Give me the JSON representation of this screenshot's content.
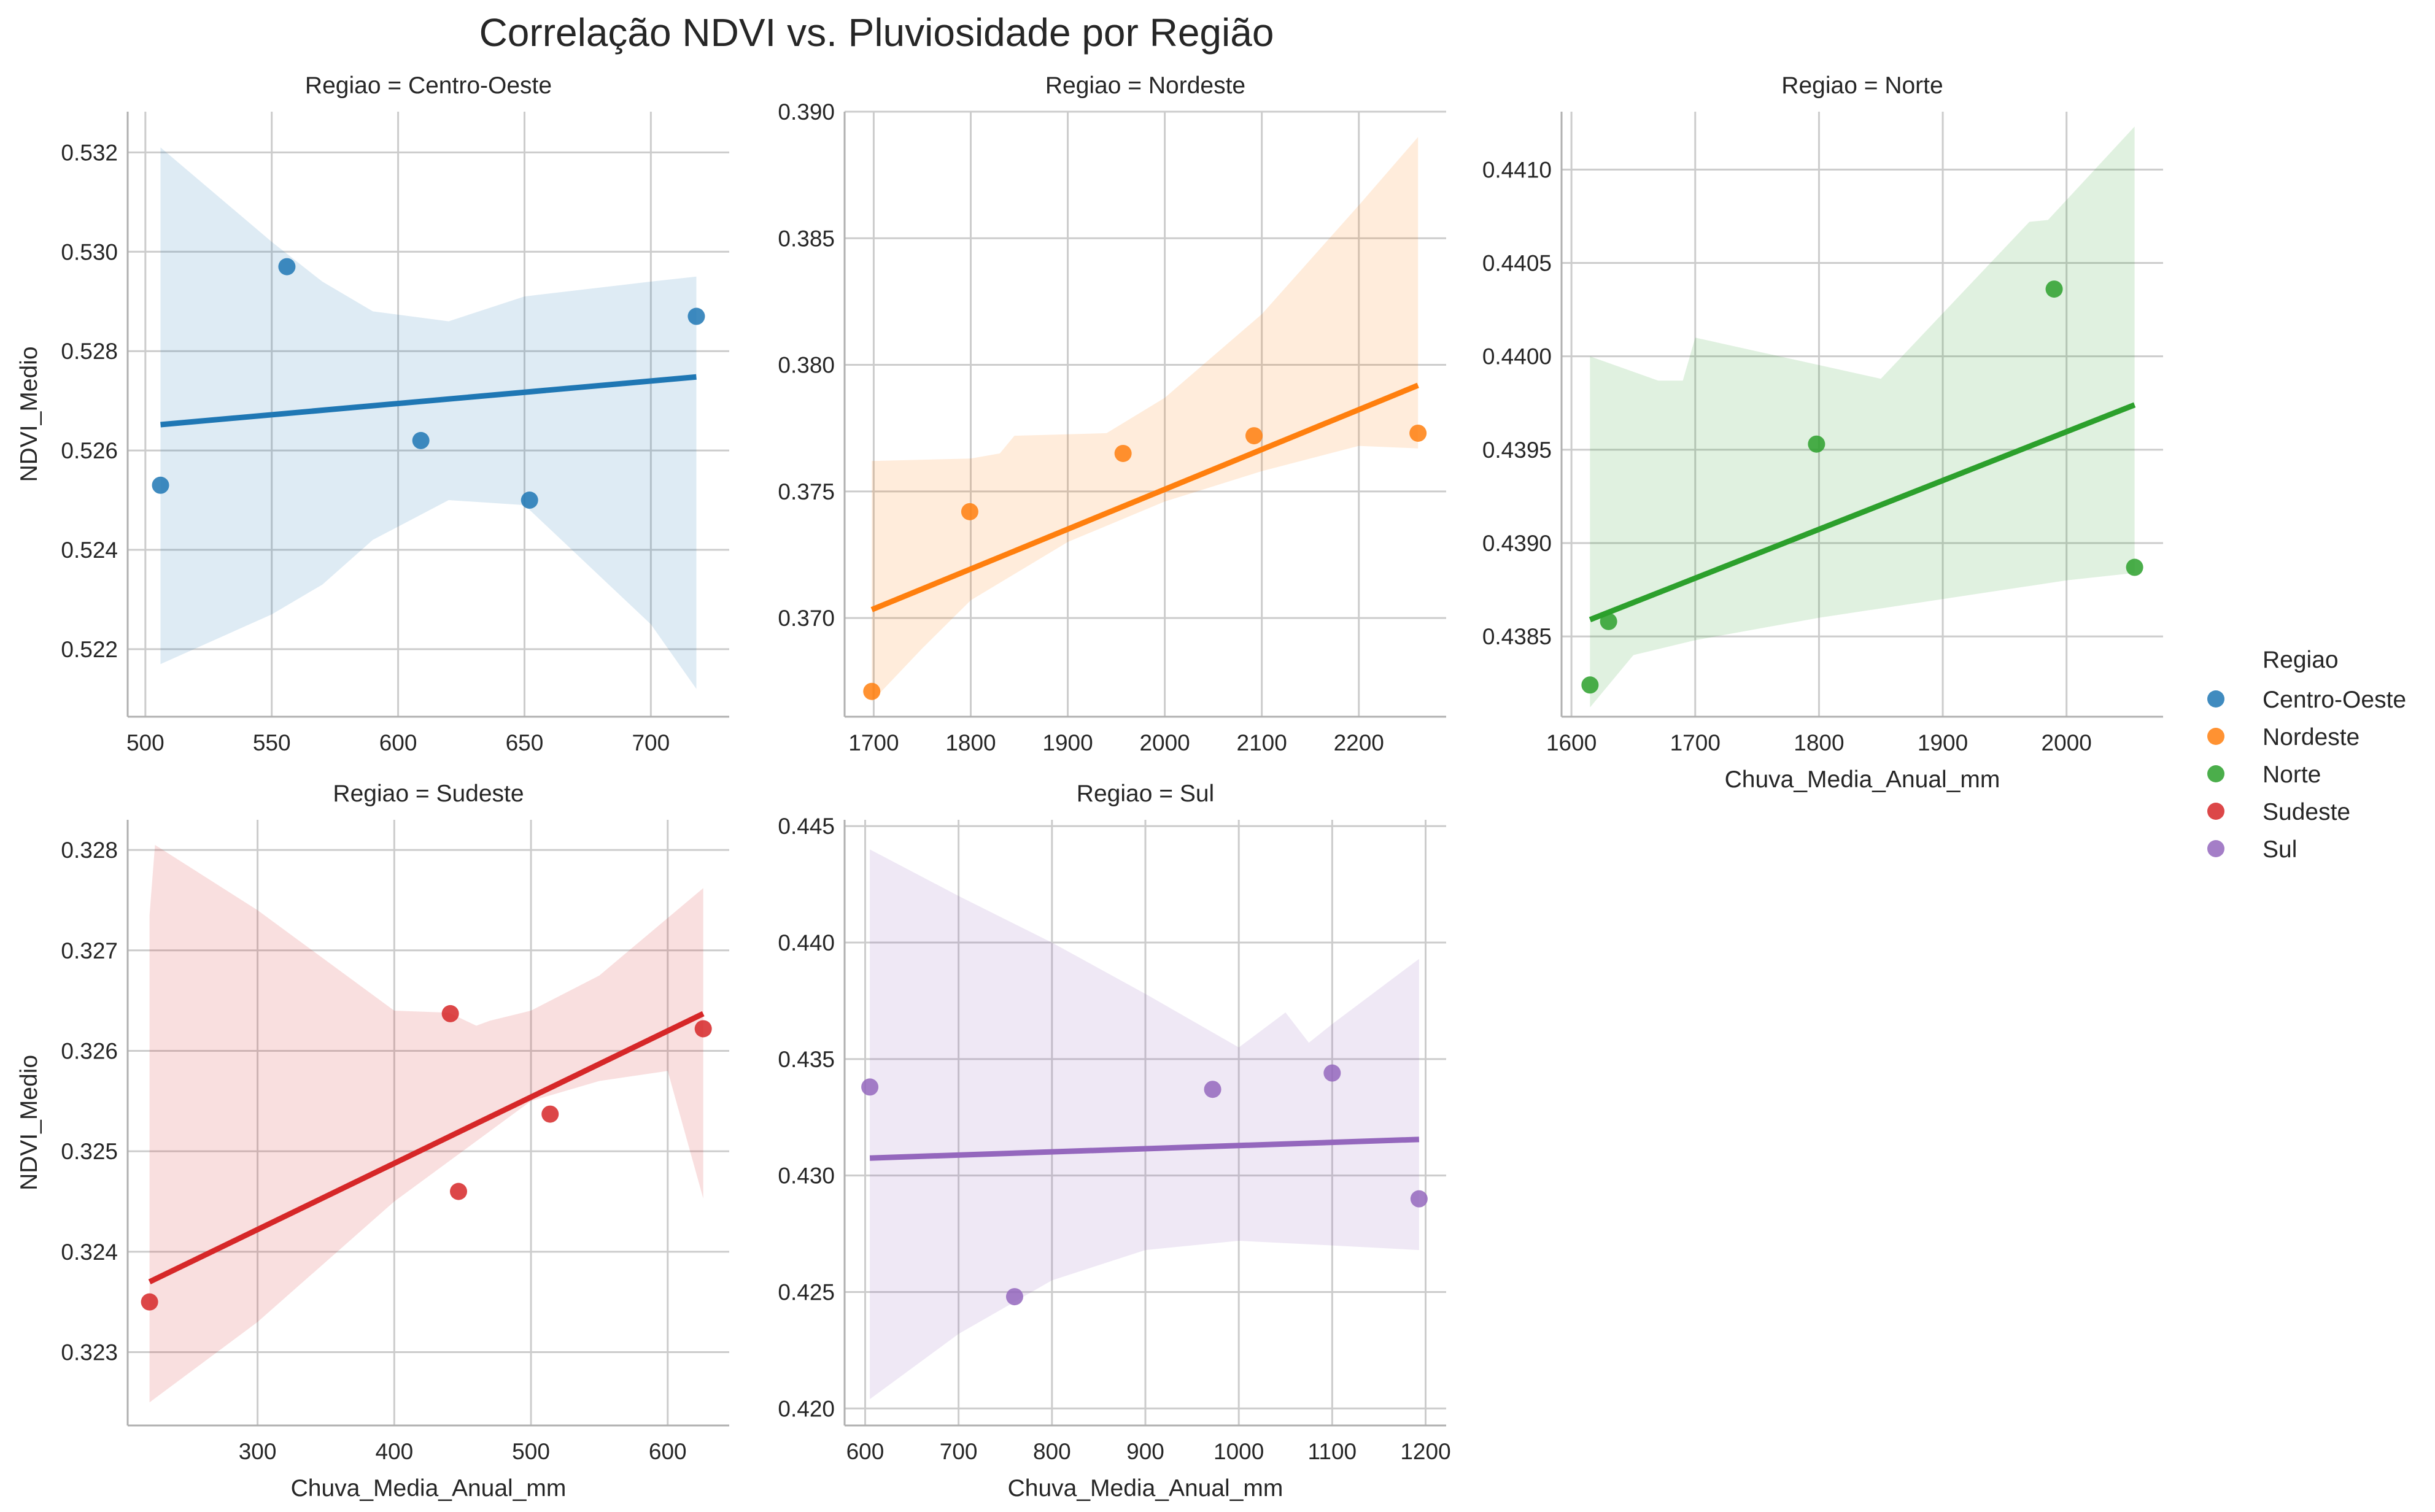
{
  "chart_data": {
    "type": "scatter",
    "title": "Correlação NDVI vs. Pluviosidade por Região",
    "legend": {
      "title": "Regiao",
      "placement": "right",
      "entries": [
        {
          "label": "Centro-Oeste",
          "color": "#1f77b4"
        },
        {
          "label": "Nordeste",
          "color": "#ff7f0e"
        },
        {
          "label": "Norte",
          "color": "#2ca02c"
        },
        {
          "label": "Sudeste",
          "color": "#d62728"
        },
        {
          "label": "Sul",
          "color": "#9467bd"
        }
      ]
    },
    "grid": true,
    "panels": [
      {
        "title": "Regiao = Centro-Oeste",
        "color": "#1f77b4",
        "ylabel": "NDVI_Medio",
        "xlabel": "",
        "xlim": [
          493,
          731
        ],
        "ylim": [
          0.52064,
          0.53282
        ],
        "xticks": [
          500,
          550,
          600,
          650,
          700
        ],
        "yticks": [
          0.522,
          0.524,
          0.526,
          0.528,
          0.53,
          0.532
        ],
        "xtick_labels": [
          "500",
          "550",
          "600",
          "650",
          "700"
        ],
        "ytick_labels": [
          "0.522",
          "0.524",
          "0.526",
          "0.528",
          "0.530",
          "0.532"
        ],
        "points": [
          [
            506,
            0.5253
          ],
          [
            556,
            0.5297
          ],
          [
            609,
            0.5262
          ],
          [
            652,
            0.525
          ],
          [
            718,
            0.5287
          ]
        ],
        "fit": [
          [
            506,
            0.52652
          ],
          [
            718,
            0.52748
          ]
        ],
        "ci_upper": [
          [
            506,
            0.5321
          ],
          [
            550,
            0.5302
          ],
          [
            570,
            0.5294
          ],
          [
            590,
            0.5288
          ],
          [
            620,
            0.5286
          ],
          [
            650,
            0.5291
          ],
          [
            700,
            0.5294
          ],
          [
            718,
            0.5295
          ]
        ],
        "ci_lower": [
          [
            506,
            0.5217
          ],
          [
            550,
            0.5227
          ],
          [
            570,
            0.5233
          ],
          [
            590,
            0.5242
          ],
          [
            620,
            0.525
          ],
          [
            650,
            0.5249
          ],
          [
            700,
            0.5225
          ],
          [
            718,
            0.5212
          ]
        ]
      },
      {
        "title": "Regiao = Nordeste",
        "color": "#ff7f0e",
        "ylabel": "",
        "xlabel": "",
        "xlim": [
          1670,
          2290
        ],
        "ylim": [
          0.3661,
          0.39
        ],
        "xticks": [
          1700,
          1800,
          1900,
          2000,
          2100,
          2200
        ],
        "yticks": [
          0.37,
          0.375,
          0.38,
          0.385,
          0.39
        ],
        "xtick_labels": [
          "1700",
          "1800",
          "1900",
          "2000",
          "2100",
          "2200"
        ],
        "ytick_labels": [
          "0.370",
          "0.375",
          "0.380",
          "0.385",
          "0.390"
        ],
        "points": [
          [
            1698,
            0.3671
          ],
          [
            1799,
            0.3742
          ],
          [
            1957,
            0.3765
          ],
          [
            2092,
            0.3772
          ],
          [
            2261,
            0.3773
          ]
        ],
        "fit": [
          [
            1698,
            0.37033
          ],
          [
            2261,
            0.37919
          ]
        ],
        "ci_upper": [
          [
            1698,
            0.3762
          ],
          [
            1800,
            0.3763
          ],
          [
            1830,
            0.3765
          ],
          [
            1845,
            0.3772
          ],
          [
            1940,
            0.3773
          ],
          [
            2000,
            0.3787
          ],
          [
            2100,
            0.382
          ],
          [
            2200,
            0.3863
          ],
          [
            2261,
            0.389
          ]
        ],
        "ci_lower": [
          [
            1698,
            0.3667
          ],
          [
            1750,
            0.3688
          ],
          [
            1800,
            0.3707
          ],
          [
            1900,
            0.373
          ],
          [
            2000,
            0.3746
          ],
          [
            2100,
            0.3758
          ],
          [
            2200,
            0.3768
          ],
          [
            2261,
            0.3767
          ]
        ]
      },
      {
        "title": "Regiao = Norte",
        "color": "#2ca02c",
        "ylabel": "",
        "xlabel": "Chuva_Media_Anual_mm",
        "xlim": [
          1592,
          2078
        ],
        "ylim": [
          0.43807,
          0.44131
        ],
        "xticks": [
          1600,
          1700,
          1800,
          1900,
          2000
        ],
        "yticks": [
          0.4385,
          0.439,
          0.4395,
          0.44,
          0.4405,
          0.441
        ],
        "xtick_labels": [
          "1600",
          "1700",
          "1800",
          "1900",
          "2000"
        ],
        "ytick_labels": [
          "0.4385",
          "0.4390",
          "0.4395",
          "0.4400",
          "0.4405",
          "0.4410"
        ],
        "points": [
          [
            1615,
            0.43824
          ],
          [
            1630,
            0.43858
          ],
          [
            1798,
            0.43953
          ],
          [
            1990,
            0.44036
          ],
          [
            2055,
            0.43887
          ]
        ],
        "fit": [
          [
            1615,
            0.43859
          ],
          [
            2055,
            0.43974
          ]
        ],
        "ci_upper": [
          [
            1615,
            0.44
          ],
          [
            1670,
            0.43987
          ],
          [
            1690,
            0.43987
          ],
          [
            1700,
            0.4401
          ],
          [
            1850,
            0.43988
          ],
          [
            1970,
            0.44072
          ],
          [
            1985,
            0.44073
          ],
          [
            2055,
            0.44123
          ]
        ],
        "ci_lower": [
          [
            1615,
            0.43812
          ],
          [
            1650,
            0.4384
          ],
          [
            1700,
            0.43848
          ],
          [
            1800,
            0.4386
          ],
          [
            1900,
            0.4387
          ],
          [
            2000,
            0.4388
          ],
          [
            2055,
            0.43884
          ]
        ]
      },
      {
        "title": "Regiao = Sudeste",
        "color": "#d62728",
        "ylabel": "NDVI_Medio",
        "xlabel": "Chuva_Media_Anual_mm",
        "xlim": [
          205,
          645
        ],
        "ylim": [
          0.32227,
          0.3283
        ],
        "xticks": [
          300,
          400,
          500,
          600
        ],
        "yticks": [
          0.323,
          0.324,
          0.325,
          0.326,
          0.327,
          0.328
        ],
        "xtick_labels": [
          "300",
          "400",
          "500",
          "600"
        ],
        "ytick_labels": [
          "0.323",
          "0.324",
          "0.325",
          "0.326",
          "0.327",
          "0.328"
        ],
        "points": [
          [
            221,
            0.3235
          ],
          [
            441,
            0.32637
          ],
          [
            447,
            0.3246
          ],
          [
            514,
            0.32537
          ],
          [
            626,
            0.32622
          ]
        ],
        "fit": [
          [
            221,
            0.3237
          ],
          [
            626,
            0.32637
          ]
        ],
        "ci_upper": [
          [
            221,
            0.32735
          ],
          [
            225,
            0.32805
          ],
          [
            300,
            0.3274
          ],
          [
            400,
            0.3264
          ],
          [
            440,
            0.32638
          ],
          [
            460,
            0.32625
          ],
          [
            470,
            0.3263
          ],
          [
            500,
            0.3264
          ],
          [
            550,
            0.32675
          ],
          [
            626,
            0.32762
          ]
        ],
        "ci_lower": [
          [
            221,
            0.3225
          ],
          [
            300,
            0.3233
          ],
          [
            400,
            0.3245
          ],
          [
            500,
            0.3255
          ],
          [
            550,
            0.3257
          ],
          [
            600,
            0.3258
          ],
          [
            626,
            0.32453
          ]
        ]
      },
      {
        "title": "Regiao = Sul",
        "color": "#9467bd",
        "ylabel": "",
        "xlabel": "Chuva_Media_Anual_mm",
        "xlim": [
          578,
          1222
        ],
        "ylim": [
          0.41927,
          0.44527
        ],
        "xticks": [
          600,
          700,
          800,
          900,
          1000,
          1100,
          1200
        ],
        "yticks": [
          0.42,
          0.425,
          0.43,
          0.435,
          0.44,
          0.445
        ],
        "xtick_labels": [
          "600",
          "700",
          "800",
          "900",
          "1000",
          "1100",
          "1200"
        ],
        "ytick_labels": [
          "0.420",
          "0.425",
          "0.430",
          "0.435",
          "0.440",
          "0.445"
        ],
        "points": [
          [
            605,
            0.4338
          ],
          [
            760,
            0.4248
          ],
          [
            972,
            0.4337
          ],
          [
            1100,
            0.4344
          ],
          [
            1193,
            0.429
          ]
        ],
        "fit": [
          [
            605,
            0.43075
          ],
          [
            1193,
            0.43155
          ]
        ],
        "ci_upper": [
          [
            605,
            0.444
          ],
          [
            700,
            0.442
          ],
          [
            800,
            0.44
          ],
          [
            900,
            0.4378
          ],
          [
            1000,
            0.4355
          ],
          [
            1050,
            0.437
          ],
          [
            1075,
            0.4357
          ],
          [
            1100,
            0.4365
          ],
          [
            1193,
            0.4393
          ]
        ],
        "ci_lower": [
          [
            605,
            0.4204
          ],
          [
            700,
            0.4232
          ],
          [
            800,
            0.4255
          ],
          [
            900,
            0.4268
          ],
          [
            1000,
            0.4272
          ],
          [
            1100,
            0.427
          ],
          [
            1193,
            0.4268
          ]
        ]
      }
    ]
  }
}
